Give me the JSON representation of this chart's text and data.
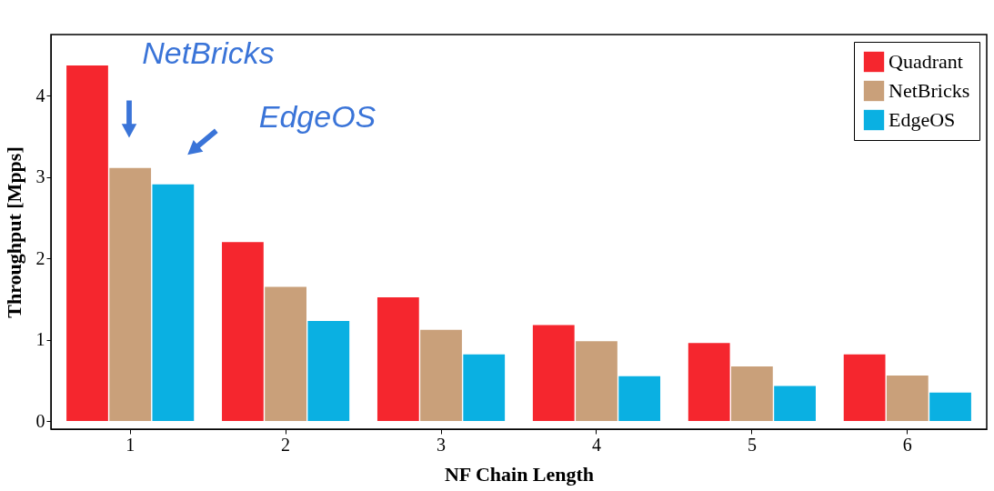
{
  "chart_data": {
    "type": "bar",
    "xlabel": "NF Chain Length",
    "ylabel": "Throughput [Mpps]",
    "categories": [
      "1",
      "2",
      "3",
      "4",
      "5",
      "6"
    ],
    "series": [
      {
        "name": "Quadrant",
        "color": "#f5262e",
        "values": [
          4.37,
          2.2,
          1.52,
          1.18,
          0.96,
          0.82
        ]
      },
      {
        "name": "NetBricks",
        "color": "#c9a07a",
        "values": [
          3.11,
          1.65,
          1.12,
          0.98,
          0.67,
          0.56
        ]
      },
      {
        "name": "EdgeOS",
        "color": "#0ab0e2",
        "values": [
          2.91,
          1.23,
          0.82,
          0.55,
          0.43,
          0.35
        ]
      }
    ],
    "ylim": [
      -0.1,
      4.75
    ],
    "yticks": [
      0,
      1,
      2,
      3,
      4
    ],
    "grid": false,
    "legend": "top right",
    "annotations": [
      "NetBricks",
      "EdgeOS"
    ]
  }
}
